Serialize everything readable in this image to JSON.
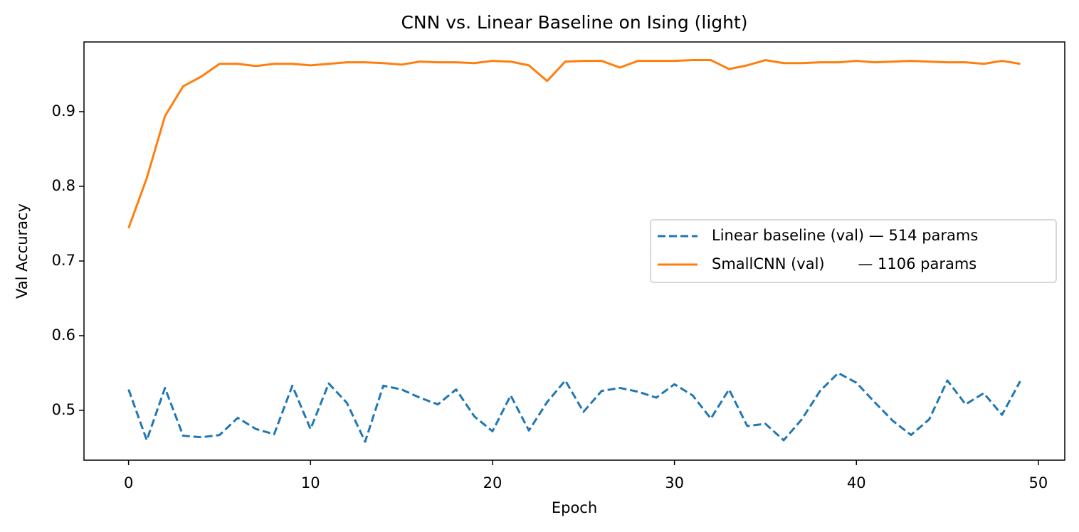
{
  "chart_data": {
    "type": "line",
    "title": "CNN vs. Linear Baseline on Ising (light)",
    "x_label": "Epoch",
    "y_label": "Val Accuracy",
    "x": [
      0,
      1,
      2,
      3,
      4,
      5,
      6,
      7,
      8,
      9,
      10,
      11,
      12,
      13,
      14,
      15,
      16,
      17,
      18,
      19,
      20,
      21,
      22,
      23,
      24,
      25,
      26,
      27,
      28,
      29,
      30,
      31,
      32,
      33,
      34,
      35,
      36,
      37,
      38,
      39,
      40,
      41,
      42,
      43,
      44,
      45,
      46,
      47,
      48,
      49
    ],
    "series": [
      {
        "name": "Linear baseline (val) — 514 params",
        "color": "#1f77b4",
        "linestyle": "dashed",
        "values": [
          0.528,
          0.46,
          0.53,
          0.466,
          0.464,
          0.467,
          0.49,
          0.475,
          0.468,
          0.533,
          0.475,
          0.536,
          0.51,
          0.458,
          0.533,
          0.528,
          0.517,
          0.508,
          0.528,
          0.492,
          0.472,
          0.52,
          0.473,
          0.511,
          0.54,
          0.498,
          0.526,
          0.53,
          0.525,
          0.517,
          0.535,
          0.52,
          0.489,
          0.528,
          0.479,
          0.482,
          0.46,
          0.488,
          0.526,
          0.55,
          0.537,
          0.511,
          0.486,
          0.467,
          0.488,
          0.54,
          0.508,
          0.523,
          0.494,
          0.539
        ]
      },
      {
        "name": "SmallCNN (val)       — 1106 params",
        "color": "#ff7f0e",
        "linestyle": "solid",
        "values": [
          0.744,
          0.811,
          0.894,
          0.934,
          0.947,
          0.964,
          0.964,
          0.961,
          0.964,
          0.964,
          0.962,
          0.964,
          0.966,
          0.966,
          0.965,
          0.963,
          0.967,
          0.966,
          0.966,
          0.965,
          0.968,
          0.967,
          0.962,
          0.941,
          0.967,
          0.968,
          0.968,
          0.959,
          0.968,
          0.968,
          0.968,
          0.969,
          0.969,
          0.957,
          0.962,
          0.969,
          0.965,
          0.965,
          0.966,
          0.966,
          0.968,
          0.966,
          0.967,
          0.968,
          0.967,
          0.966,
          0.966,
          0.964,
          0.968,
          0.964
        ]
      }
    ],
    "xlim": [
      -2.45,
      51.45
    ],
    "ylim": [
      0.4333,
      0.9933
    ],
    "xticks": [
      0,
      10,
      20,
      30,
      40,
      50
    ],
    "yticks": [
      0.5,
      0.6,
      0.7,
      0.8,
      0.9
    ],
    "grid": false,
    "legend_position": "center right"
  }
}
